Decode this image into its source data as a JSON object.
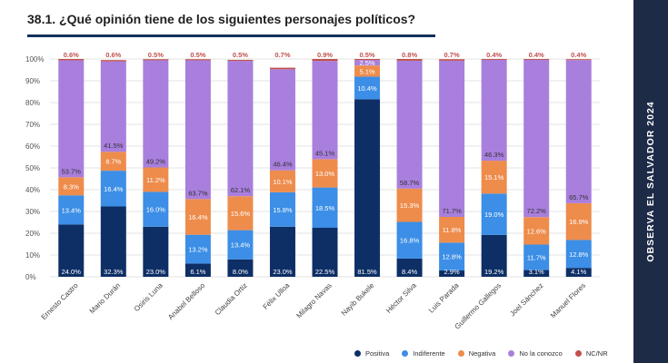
{
  "page": {
    "title": "38.1. ¿Qué opinión tiene de los siguientes personajes políticos?",
    "sidebar_text": "OBSERVA EL SALVADOR 2024"
  },
  "chart_data": {
    "type": "bar",
    "stacked": true,
    "title": "38.1. ¿Qué opinión tiene de los siguientes personajes políticos?",
    "xlabel": "",
    "ylabel": "",
    "ylim": [
      0,
      100
    ],
    "y_ticks": [
      "0%",
      "10%",
      "20%",
      "30%",
      "40%",
      "50%",
      "60%",
      "70%",
      "80%",
      "90%",
      "100%"
    ],
    "legend_position": "bottom-right",
    "grid": true,
    "categories": [
      "Ernesto Castro",
      "Mario Durán",
      "Osiris Luna",
      "Anabel Belloso",
      "Claudia Ortiz",
      "Félix Ulloa",
      "Milagro Navas",
      "Nayib Bukele",
      "Héctor Silva",
      "Luis Parada",
      "Guillermo Gallegos",
      "Joel Sánchez",
      "Manuel Flores"
    ],
    "series": [
      {
        "name": "Positiva",
        "color": "#0e2f66",
        "values": [
          24.0,
          32.3,
          23.0,
          6.1,
          8.0,
          23.0,
          22.5,
          81.5,
          8.4,
          2.9,
          19.2,
          3.1,
          4.1
        ],
        "labels": [
          "24.0%",
          "32.3%",
          "23.0%",
          "6.1%",
          "8.0%",
          "23.0%",
          "22.5%",
          "81.5%",
          "8.4%",
          "2.9%",
          "19.2%",
          "3.1%",
          "4.1%"
        ]
      },
      {
        "name": "Indiferente",
        "color": "#3c8ee6",
        "values": [
          13.4,
          16.4,
          16.0,
          13.2,
          13.4,
          15.8,
          18.5,
          10.4,
          16.8,
          12.8,
          19.0,
          11.7,
          12.8
        ],
        "labels": [
          "13.4%",
          "16.4%",
          "16.0%",
          "13.2%",
          "13.4%",
          "15.8%",
          "18.5%",
          "10.4%",
          "16.8%",
          "12.8%",
          "19.0%",
          "11.7%",
          "12.8%"
        ]
      },
      {
        "name": "Negativa",
        "color": "#ee8c4c",
        "values": [
          8.3,
          8.7,
          11.2,
          16.4,
          15.6,
          10.1,
          13.0,
          5.1,
          15.3,
          11.8,
          15.1,
          12.6,
          16.9
        ],
        "labels": [
          "8.3%",
          "8.7%",
          "11.2%",
          "16.4%",
          "15.6%",
          "10.1%",
          "13.0%",
          "5.1%",
          "15.3%",
          "11.8%",
          "15.1%",
          "12.6%",
          "16.9%"
        ]
      },
      {
        "name": "No la conozco",
        "color": "#a87fdd",
        "values": [
          53.7,
          41.5,
          49.2,
          63.7,
          62.1,
          46.4,
          45.1,
          2.5,
          58.7,
          71.7,
          46.3,
          72.2,
          65.7
        ],
        "labels": [
          "53.7%",
          "41.5%",
          "49.2%",
          "63.7%",
          "62.1%",
          "46.4%",
          "45.1%",
          "2.5%",
          "58.7%",
          "71.7%",
          "46.3%",
          "72.2%",
          "65.7%"
        ]
      },
      {
        "name": "NC/NR",
        "color": "#c0504d",
        "values": [
          0.6,
          0.6,
          0.5,
          0.5,
          0.5,
          0.7,
          0.9,
          0.5,
          0.8,
          0.7,
          0.4,
          0.4,
          0.4
        ],
        "labels": [
          "0.6%",
          "0.6%",
          "0.5%",
          "0.5%",
          "0.5%",
          "0.7%",
          "0.9%",
          "0.5%",
          "0.8%",
          "0.7%",
          "0.4%",
          "0.4%",
          "0.4%"
        ]
      }
    ]
  }
}
